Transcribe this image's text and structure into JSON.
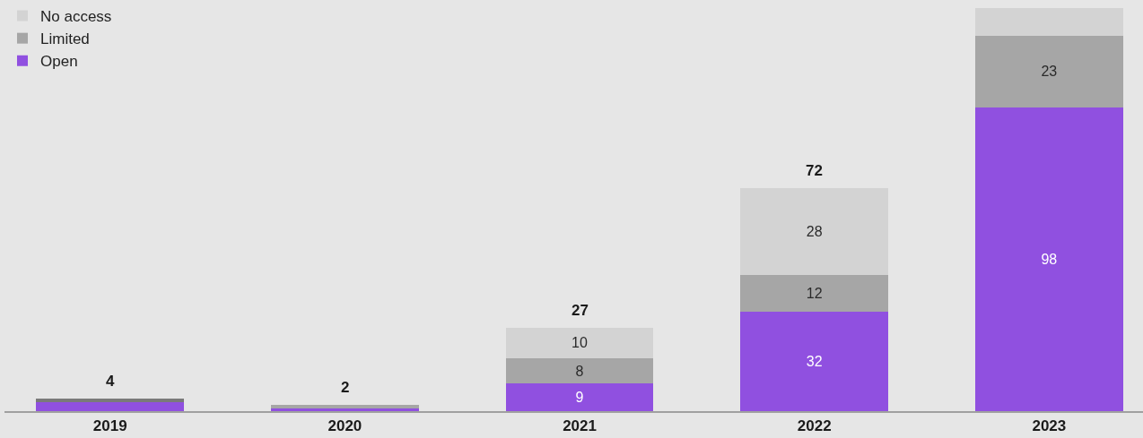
{
  "chart_data": {
    "type": "bar",
    "stacked": true,
    "categories": [
      "2019",
      "2020",
      "2021",
      "2022",
      "2023"
    ],
    "ylim": [
      0,
      130
    ],
    "legend": "top left",
    "grid": false,
    "tick_labels": "x",
    "series": [
      {
        "name": "Open",
        "color": "#9050e0",
        "values": [
          3,
          1,
          9,
          32,
          98
        ],
        "value_labels": [
          null,
          null,
          "9",
          "32",
          "98"
        ]
      },
      {
        "name": "Limited",
        "color": "#a6a6a6",
        "colors": [
          "#7a7a7a",
          "#a6a6a6",
          "#a6a6a6",
          "#a6a6a6",
          "#a6a6a6"
        ],
        "values": [
          1,
          1,
          8,
          12,
          23
        ],
        "value_labels": [
          null,
          null,
          "8",
          "12",
          "23"
        ]
      },
      {
        "name": "No access",
        "color": "#d3d3d3",
        "values": [
          0,
          0,
          10,
          28,
          9
        ],
        "value_labels": [
          null,
          null,
          "10",
          "28",
          null
        ]
      }
    ],
    "totals": [
      "4",
      "2",
      "27",
      "72",
      null
    ]
  }
}
